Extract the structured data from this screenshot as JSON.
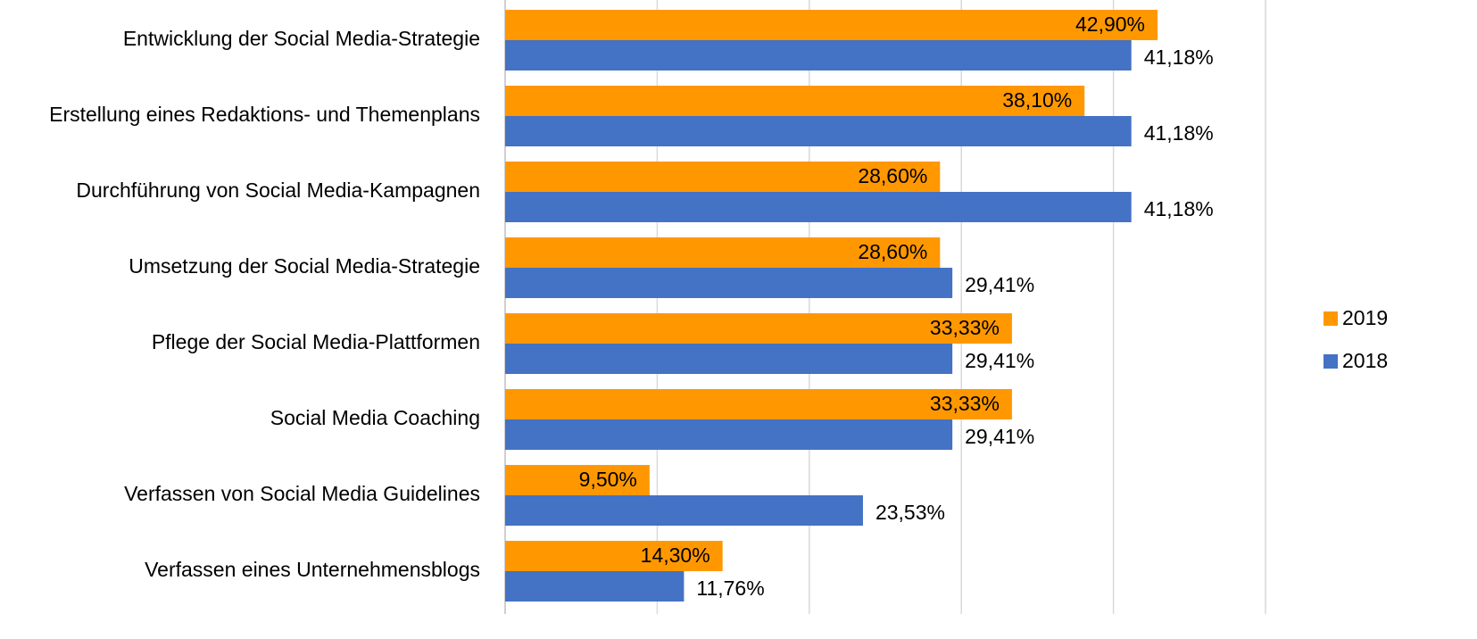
{
  "chart_data": {
    "type": "bar",
    "orientation": "horizontal",
    "categories": [
      "Entwicklung der Social Media-Strategie",
      "Erstellung eines Redaktions- und Themenplans",
      "Durchführung von Social Media-Kampagnen",
      "Umsetzung der Social Media-Strategie",
      "Pflege der Social Media-Plattformen",
      "Social Media Coaching",
      "Verfassen von Social Media Guidelines",
      "Verfassen eines Unternehmensblogs"
    ],
    "series": [
      {
        "name": "2019",
        "color": "#ff9800",
        "values": [
          42.9,
          38.1,
          28.6,
          28.6,
          33.33,
          33.33,
          9.5,
          14.3
        ],
        "value_labels": [
          "42,90%",
          "38,10%",
          "28,60%",
          "28,60%",
          "33,33%",
          "33,33%",
          "9,50%",
          "14,30%"
        ]
      },
      {
        "name": "2018",
        "color": "#4472c4",
        "values": [
          41.18,
          41.18,
          41.18,
          29.41,
          29.41,
          29.41,
          23.53,
          11.76
        ],
        "value_labels": [
          "41,18%",
          "41,18%",
          "41,18%",
          "29,41%",
          "29,41%",
          "29,41%",
          "23,53%",
          "11,76%"
        ]
      }
    ],
    "xlim": [
      0,
      50
    ],
    "xticks": [
      0,
      10,
      20,
      30,
      40,
      50
    ],
    "grid": true,
    "legend": "right"
  }
}
